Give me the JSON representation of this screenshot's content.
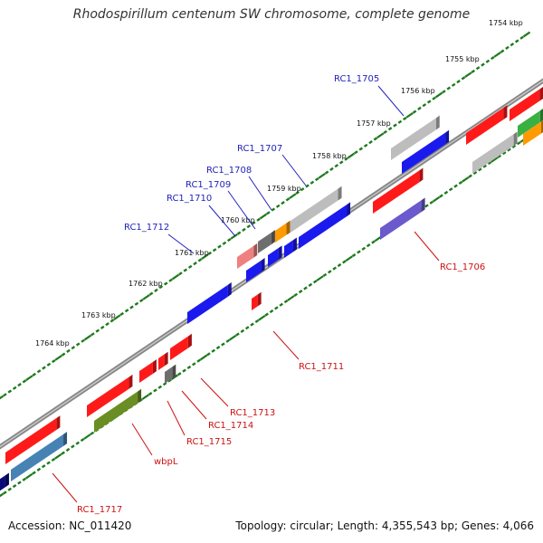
{
  "title": "Rhodospirillum centenum SW chromosome, complete genome",
  "accession_text": "Accession: NC_011420",
  "topology_text": "Topology: circular; Length: 4,355,543 bp; Genes: 4,066",
  "colors": {
    "red": "#ff1a1a",
    "blue": "#1a1aee",
    "gray": "#bdbdbd",
    "darkgray": "#6e6e6e",
    "navy": "#0b0b78",
    "orange": "#ff9a00",
    "green": "#3ab043",
    "olive": "#6a8e23",
    "steelblue": "#4682b4",
    "purple": "#6a5acd",
    "pink": "#f08080",
    "label_blue": "#2222bb",
    "label_red": "#cc1111",
    "tick_green": "#1d7a1d"
  },
  "tick_labels": [
    "1754 kbp",
    "1755 kbp",
    "1756 kbp",
    "1757 kbp",
    "1758 kbp",
    "1759 kbp",
    "1760 kbp",
    "1761 kbp",
    "1762 kbp",
    "1763 kbp",
    "1764 kbp"
  ],
  "top_labels": [
    "RC1_1705",
    "RC1_1707",
    "RC1_1708",
    "RC1_1709",
    "RC1_1710",
    "RC1_1712"
  ],
  "bottom_labels": [
    "RC1_1706",
    "RC1_1711",
    "RC1_1713",
    "RC1_1714",
    "RC1_1715",
    "wbpL",
    "RC1_1717"
  ]
}
